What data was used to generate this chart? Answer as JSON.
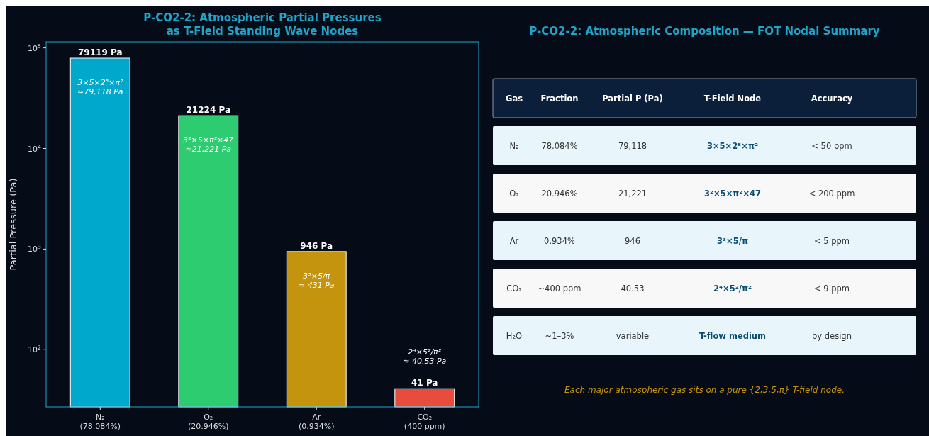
{
  "chart_data": [
    {
      "type": "bar",
      "title": "P-CO2-2: Atmospheric Partial Pressures\nas T-Field Standing Wave Nodes",
      "ylabel": "Partial Pressure (Pa)",
      "log": true,
      "categories": [
        "N₂\n(78.084%)",
        "O₂\n(20.946%)",
        "Ar\n(0.934%)",
        "CO₂\n(400 ppm)"
      ],
      "values": [
        79119,
        21224,
        946,
        41
      ],
      "colors": [
        "#00a8cc",
        "#2ecc71",
        "#c4940e",
        "#e74c3c"
      ],
      "value_labels": [
        "79119 Pa",
        "21224 Pa",
        "946 Pa",
        "41 Pa"
      ],
      "ylim": [
        27,
        115000
      ],
      "yticks": [
        {
          "value": 100,
          "label": "10$^{2}$"
        },
        {
          "value": 1000,
          "label": "10$^{3}$"
        },
        {
          "value": 10000,
          "label": "10$^{4}$"
        },
        {
          "value": 100000,
          "label": "10$^{5}$"
        }
      ],
      "annotations": [
        "3×5×2⁵×π²\n≈79,118 Pa",
        "3²×5×π²×47\n≈21,221 Pa",
        "3³×5/π\n≈ 431 Pa",
        "2⁴×5²/π²\n≈ 40.53 Pa"
      ],
      "grid": false
    },
    {
      "type": "other",
      "title": "P-CO2-2: Atmospheric Composition — FOT Nodal Summary",
      "categories": [
        "Gas",
        "Fraction",
        "Partial P (Pa)",
        "T-Field Node",
        "Accuracy"
      ],
      "cell_labels": [
        [
          "N₂",
          "78.084%",
          "79,118",
          "3×5×2⁵×π²",
          "< 50 ppm"
        ],
        [
          "O₂",
          "20.946%",
          "21,221",
          "3²×5×π²×47",
          "< 200 ppm"
        ],
        [
          "Ar",
          "0.934%",
          "946",
          "3³×5/π",
          "< 5 ppm"
        ],
        [
          "CO₂",
          "~400 ppm",
          "40.53",
          "2⁴×5²/π²",
          "< 9 ppm"
        ],
        [
          "H₂O",
          "~1–3%",
          "variable",
          "T-flow medium",
          "by design"
        ]
      ],
      "annotations": [
        "Each major atmospheric gas sits on a pure {2,3,5,π} T-field node."
      ]
    }
  ]
}
